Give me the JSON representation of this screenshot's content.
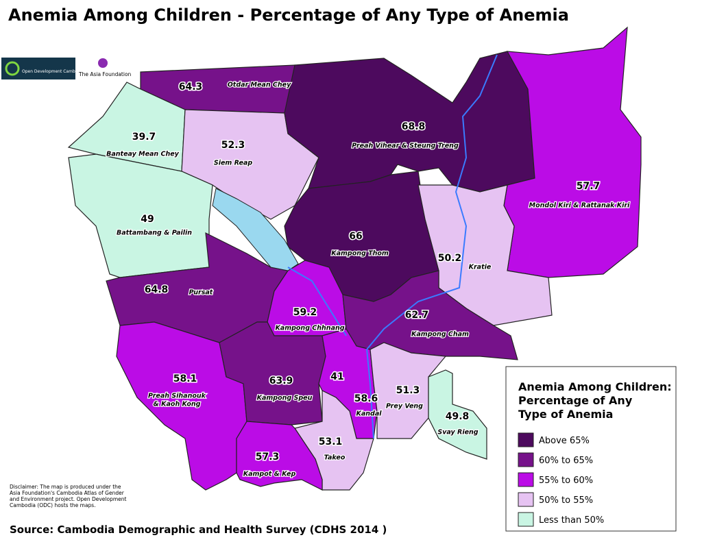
{
  "title": "Anemia Among Children - Percentage of Any Type of Anemia",
  "logos": {
    "odc": "Open Development Cambodia",
    "taf": "The Asia Foundation"
  },
  "regions": [
    {
      "name": "Otdar Mean Chey",
      "value": 64.3,
      "color": "#76128a"
    },
    {
      "name": "Banteay Mean Chey",
      "value": 39.7,
      "color": "#c9f5e3"
    },
    {
      "name": "Siem Reap",
      "value": 52.3,
      "color": "#e6c3f2"
    },
    {
      "name": "Preah Vihear & Steung Treng",
      "value": 68.8,
      "color": "#4d0a5e"
    },
    {
      "name": "Mondol Kiri & Rattanak Kiri",
      "value": 57.7,
      "color": "#bb0ce6"
    },
    {
      "name": "Battambang & Pailin",
      "value": 49,
      "color": "#c9f5e3"
    },
    {
      "name": "Kampong Thom",
      "value": 66,
      "color": "#4d0a5e"
    },
    {
      "name": "Kratie",
      "value": 50.2,
      "color": "#e6c3f2"
    },
    {
      "name": "Pursat",
      "value": 64.8,
      "color": "#76128a"
    },
    {
      "name": "Kampong Chhnang",
      "value": 59.2,
      "color": "#bb0ce6"
    },
    {
      "name": "Kampong Cham",
      "value": 62.7,
      "color": "#76128a"
    },
    {
      "name": [
        "Preah Sihanouk",
        "& Kaoh Kong"
      ],
      "value": 58.1,
      "color": "#bb0ce6"
    },
    {
      "name": "Kampong Speu",
      "value": 63.9,
      "color": "#76128a"
    },
    {
      "value": 41,
      "color": "#c9f5e3"
    },
    {
      "name": "Kandal",
      "value": 58.6,
      "color": "#bb0ce6"
    },
    {
      "name": "Prey Veng",
      "value": 51.3,
      "color": "#e6c3f2"
    },
    {
      "name": "Svay Rieng",
      "value": 49.8,
      "color": "#c9f5e3"
    },
    {
      "name": "Takeo",
      "value": 53.1,
      "color": "#e6c3f2"
    },
    {
      "name": "Kampot & Kep",
      "value": 57.3,
      "color": "#bb0ce6"
    }
  ],
  "legend": {
    "title": [
      "Anemia Among Children:",
      "Percentage of Any",
      "Type of Anemia"
    ],
    "items": [
      {
        "label": "Above 65%",
        "color": "#4d0a5e"
      },
      {
        "label": "60% to 65%",
        "color": "#76128a"
      },
      {
        "label": "55% to 60%",
        "color": "#bb0ce6"
      },
      {
        "label": "50% to 55%",
        "color": "#e6c3f2"
      },
      {
        "label": "Less than 50%",
        "color": "#c9f5e3"
      }
    ]
  },
  "disclaimer": "Disclaimer: The map is produced under the Asia Foundation's Cambodia Atlas of Gender and Environment project. Open Development Cambodia (ODC) hosts the maps.",
  "source": "Source:  Cambodia Demographic and Health Survey (CDHS 2014 )"
}
